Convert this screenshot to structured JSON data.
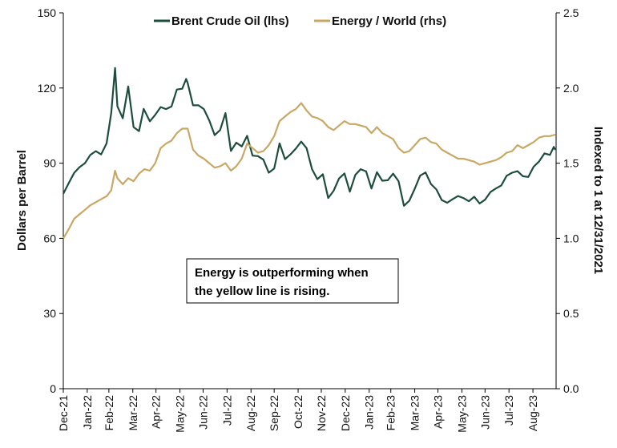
{
  "chart_data": {
    "type": "line",
    "title": "",
    "ylabel_left": "Dollars per Barrel",
    "ylabel_right": "Indexed to 1 at 12/31/2021",
    "ylim_left": [
      0,
      150
    ],
    "yticks_left": [
      0,
      30,
      60,
      90,
      120,
      150
    ],
    "ylim_right": [
      0.0,
      2.5
    ],
    "yticks_right_labels": [
      "0.0",
      "0.5",
      "1.0",
      "1.5",
      "2.0",
      "2.5"
    ],
    "xlim": [
      "2021-12-31",
      "2023-09-30"
    ],
    "x_tick_labels": [
      "Dec-21",
      "Jan-22",
      "Feb-22",
      "Mar-22",
      "Apr-22",
      "May-22",
      "Jun-22",
      "Jul-22",
      "Aug-22",
      "Sep-22",
      "Oct-22",
      "Nov-22",
      "Dec-22",
      "Jan-23",
      "Feb-23",
      "Mar-23",
      "Apr-23",
      "May-23",
      "Jun-23",
      "Jul-23",
      "Aug-23"
    ],
    "legend_position": "top",
    "grid": false,
    "annotation": [
      "Energy is outperforming when",
      "the yellow line is rising."
    ],
    "series": [
      {
        "name": "Brent Crude Oil (lhs)",
        "axis": "left",
        "color": "#1d4d3b",
        "points": [
          [
            "2021-12-31",
            77.8
          ],
          [
            "2022-01-07",
            82.0
          ],
          [
            "2022-01-14",
            86.1
          ],
          [
            "2022-01-21",
            88.4
          ],
          [
            "2022-01-28",
            90.0
          ],
          [
            "2022-02-04",
            93.3
          ],
          [
            "2022-02-11",
            94.8
          ],
          [
            "2022-02-18",
            93.5
          ],
          [
            "2022-02-25",
            97.9
          ],
          [
            "2022-03-03",
            110.0
          ],
          [
            "2022-03-08",
            128.0
          ],
          [
            "2022-03-11",
            112.7
          ],
          [
            "2022-03-18",
            107.9
          ],
          [
            "2022-03-25",
            120.6
          ],
          [
            "2022-04-01",
            104.4
          ],
          [
            "2022-04-08",
            102.8
          ],
          [
            "2022-04-14",
            111.7
          ],
          [
            "2022-04-22",
            106.7
          ],
          [
            "2022-04-29",
            109.3
          ],
          [
            "2022-05-06",
            112.4
          ],
          [
            "2022-05-13",
            111.6
          ],
          [
            "2022-05-20",
            112.6
          ],
          [
            "2022-05-27",
            119.4
          ],
          [
            "2022-06-03",
            119.7
          ],
          [
            "2022-06-08",
            123.6
          ],
          [
            "2022-06-10",
            122.0
          ],
          [
            "2022-06-17",
            113.1
          ],
          [
            "2022-06-24",
            113.1
          ],
          [
            "2022-07-01",
            111.6
          ],
          [
            "2022-07-08",
            107.0
          ],
          [
            "2022-07-15",
            101.2
          ],
          [
            "2022-07-22",
            103.2
          ],
          [
            "2022-07-29",
            110.0
          ],
          [
            "2022-08-05",
            94.9
          ],
          [
            "2022-08-12",
            98.2
          ],
          [
            "2022-08-19",
            96.7
          ],
          [
            "2022-08-26",
            100.9
          ],
          [
            "2022-09-02",
            93.0
          ],
          [
            "2022-09-09",
            92.8
          ],
          [
            "2022-09-16",
            91.4
          ],
          [
            "2022-09-23",
            86.2
          ],
          [
            "2022-09-30",
            87.9
          ],
          [
            "2022-10-07",
            97.9
          ],
          [
            "2022-10-14",
            91.6
          ],
          [
            "2022-10-21",
            93.5
          ],
          [
            "2022-10-28",
            95.8
          ],
          [
            "2022-11-04",
            98.6
          ],
          [
            "2022-11-11",
            96.0
          ],
          [
            "2022-11-18",
            87.6
          ],
          [
            "2022-11-25",
            83.6
          ],
          [
            "2022-12-02",
            85.6
          ],
          [
            "2022-12-09",
            76.1
          ],
          [
            "2022-12-16",
            79.0
          ],
          [
            "2022-12-23",
            83.9
          ],
          [
            "2022-12-30",
            85.9
          ],
          [
            "2023-01-06",
            78.6
          ],
          [
            "2023-01-13",
            85.3
          ],
          [
            "2023-01-20",
            87.6
          ],
          [
            "2023-01-27",
            86.7
          ],
          [
            "2023-02-03",
            79.9
          ],
          [
            "2023-02-10",
            86.4
          ],
          [
            "2023-02-17",
            83.0
          ],
          [
            "2023-02-24",
            83.2
          ],
          [
            "2023-03-03",
            85.8
          ],
          [
            "2023-03-10",
            82.8
          ],
          [
            "2023-03-17",
            72.97
          ],
          [
            "2023-03-24",
            74.99
          ],
          [
            "2023-03-31",
            79.8
          ],
          [
            "2023-04-07",
            85.0
          ],
          [
            "2023-04-14",
            86.3
          ],
          [
            "2023-04-21",
            81.7
          ],
          [
            "2023-04-28",
            79.5
          ],
          [
            "2023-05-05",
            75.3
          ],
          [
            "2023-05-12",
            74.2
          ],
          [
            "2023-05-19",
            75.6
          ],
          [
            "2023-05-26",
            76.9
          ],
          [
            "2023-06-02",
            76.1
          ],
          [
            "2023-06-09",
            74.8
          ],
          [
            "2023-06-16",
            76.6
          ],
          [
            "2023-06-23",
            73.9
          ],
          [
            "2023-06-30",
            75.4
          ],
          [
            "2023-07-07",
            78.5
          ],
          [
            "2023-07-14",
            79.9
          ],
          [
            "2023-07-21",
            81.1
          ],
          [
            "2023-07-28",
            84.99
          ],
          [
            "2023-08-04",
            86.2
          ],
          [
            "2023-08-11",
            86.8
          ],
          [
            "2023-08-18",
            84.8
          ],
          [
            "2023-08-25",
            84.5
          ],
          [
            "2023-09-01",
            88.6
          ],
          [
            "2023-09-08",
            90.7
          ],
          [
            "2023-09-15",
            93.9
          ],
          [
            "2023-09-22",
            93.3
          ],
          [
            "2023-09-27",
            96.5
          ],
          [
            "2023-09-29",
            95.3
          ]
        ]
      },
      {
        "name": "Energy / World (rhs)",
        "axis": "right",
        "color": "#c9a865",
        "points": [
          [
            "2021-12-31",
            1.0
          ],
          [
            "2022-01-07",
            1.06
          ],
          [
            "2022-01-14",
            1.13
          ],
          [
            "2022-01-21",
            1.16
          ],
          [
            "2022-01-28",
            1.19
          ],
          [
            "2022-02-04",
            1.22
          ],
          [
            "2022-02-11",
            1.24
          ],
          [
            "2022-02-18",
            1.26
          ],
          [
            "2022-02-25",
            1.28
          ],
          [
            "2022-03-03",
            1.32
          ],
          [
            "2022-03-08",
            1.45
          ],
          [
            "2022-03-11",
            1.4
          ],
          [
            "2022-03-18",
            1.36
          ],
          [
            "2022-03-25",
            1.4
          ],
          [
            "2022-04-01",
            1.38
          ],
          [
            "2022-04-08",
            1.43
          ],
          [
            "2022-04-15",
            1.46
          ],
          [
            "2022-04-22",
            1.45
          ],
          [
            "2022-04-29",
            1.5
          ],
          [
            "2022-05-06",
            1.6
          ],
          [
            "2022-05-13",
            1.63
          ],
          [
            "2022-05-20",
            1.65
          ],
          [
            "2022-05-27",
            1.7
          ],
          [
            "2022-06-03",
            1.73
          ],
          [
            "2022-06-10",
            1.73
          ],
          [
            "2022-06-17",
            1.59
          ],
          [
            "2022-06-24",
            1.55
          ],
          [
            "2022-07-01",
            1.53
          ],
          [
            "2022-07-08",
            1.5
          ],
          [
            "2022-07-15",
            1.47
          ],
          [
            "2022-07-22",
            1.48
          ],
          [
            "2022-07-29",
            1.5
          ],
          [
            "2022-08-05",
            1.45
          ],
          [
            "2022-08-12",
            1.48
          ],
          [
            "2022-08-19",
            1.53
          ],
          [
            "2022-08-26",
            1.63
          ],
          [
            "2022-09-02",
            1.6
          ],
          [
            "2022-09-09",
            1.57
          ],
          [
            "2022-09-16",
            1.58
          ],
          [
            "2022-09-23",
            1.62
          ],
          [
            "2022-09-30",
            1.68
          ],
          [
            "2022-10-07",
            1.78
          ],
          [
            "2022-10-14",
            1.81
          ],
          [
            "2022-10-21",
            1.84
          ],
          [
            "2022-10-28",
            1.86
          ],
          [
            "2022-11-04",
            1.9
          ],
          [
            "2022-11-11",
            1.85
          ],
          [
            "2022-11-18",
            1.81
          ],
          [
            "2022-11-25",
            1.8
          ],
          [
            "2022-12-02",
            1.78
          ],
          [
            "2022-12-09",
            1.74
          ],
          [
            "2022-12-16",
            1.72
          ],
          [
            "2022-12-23",
            1.75
          ],
          [
            "2022-12-30",
            1.78
          ],
          [
            "2023-01-06",
            1.76
          ],
          [
            "2023-01-13",
            1.76
          ],
          [
            "2023-01-20",
            1.75
          ],
          [
            "2023-01-27",
            1.74
          ],
          [
            "2023-02-03",
            1.7
          ],
          [
            "2023-02-10",
            1.74
          ],
          [
            "2023-02-17",
            1.7
          ],
          [
            "2023-02-24",
            1.68
          ],
          [
            "2023-03-03",
            1.66
          ],
          [
            "2023-03-10",
            1.6
          ],
          [
            "2023-03-17",
            1.57
          ],
          [
            "2023-03-24",
            1.58
          ],
          [
            "2023-03-31",
            1.62
          ],
          [
            "2023-04-07",
            1.66
          ],
          [
            "2023-04-14",
            1.67
          ],
          [
            "2023-04-21",
            1.64
          ],
          [
            "2023-04-28",
            1.63
          ],
          [
            "2023-05-05",
            1.59
          ],
          [
            "2023-05-12",
            1.57
          ],
          [
            "2023-05-19",
            1.55
          ],
          [
            "2023-05-26",
            1.53
          ],
          [
            "2023-06-02",
            1.53
          ],
          [
            "2023-06-09",
            1.52
          ],
          [
            "2023-06-16",
            1.51
          ],
          [
            "2023-06-23",
            1.49
          ],
          [
            "2023-06-30",
            1.5
          ],
          [
            "2023-07-07",
            1.51
          ],
          [
            "2023-07-14",
            1.52
          ],
          [
            "2023-07-21",
            1.54
          ],
          [
            "2023-07-28",
            1.57
          ],
          [
            "2023-08-04",
            1.58
          ],
          [
            "2023-08-11",
            1.62
          ],
          [
            "2023-08-18",
            1.6
          ],
          [
            "2023-08-25",
            1.62
          ],
          [
            "2023-09-01",
            1.64
          ],
          [
            "2023-09-08",
            1.67
          ],
          [
            "2023-09-15",
            1.68
          ],
          [
            "2023-09-22",
            1.68
          ],
          [
            "2023-09-29",
            1.69
          ]
        ]
      }
    ]
  }
}
